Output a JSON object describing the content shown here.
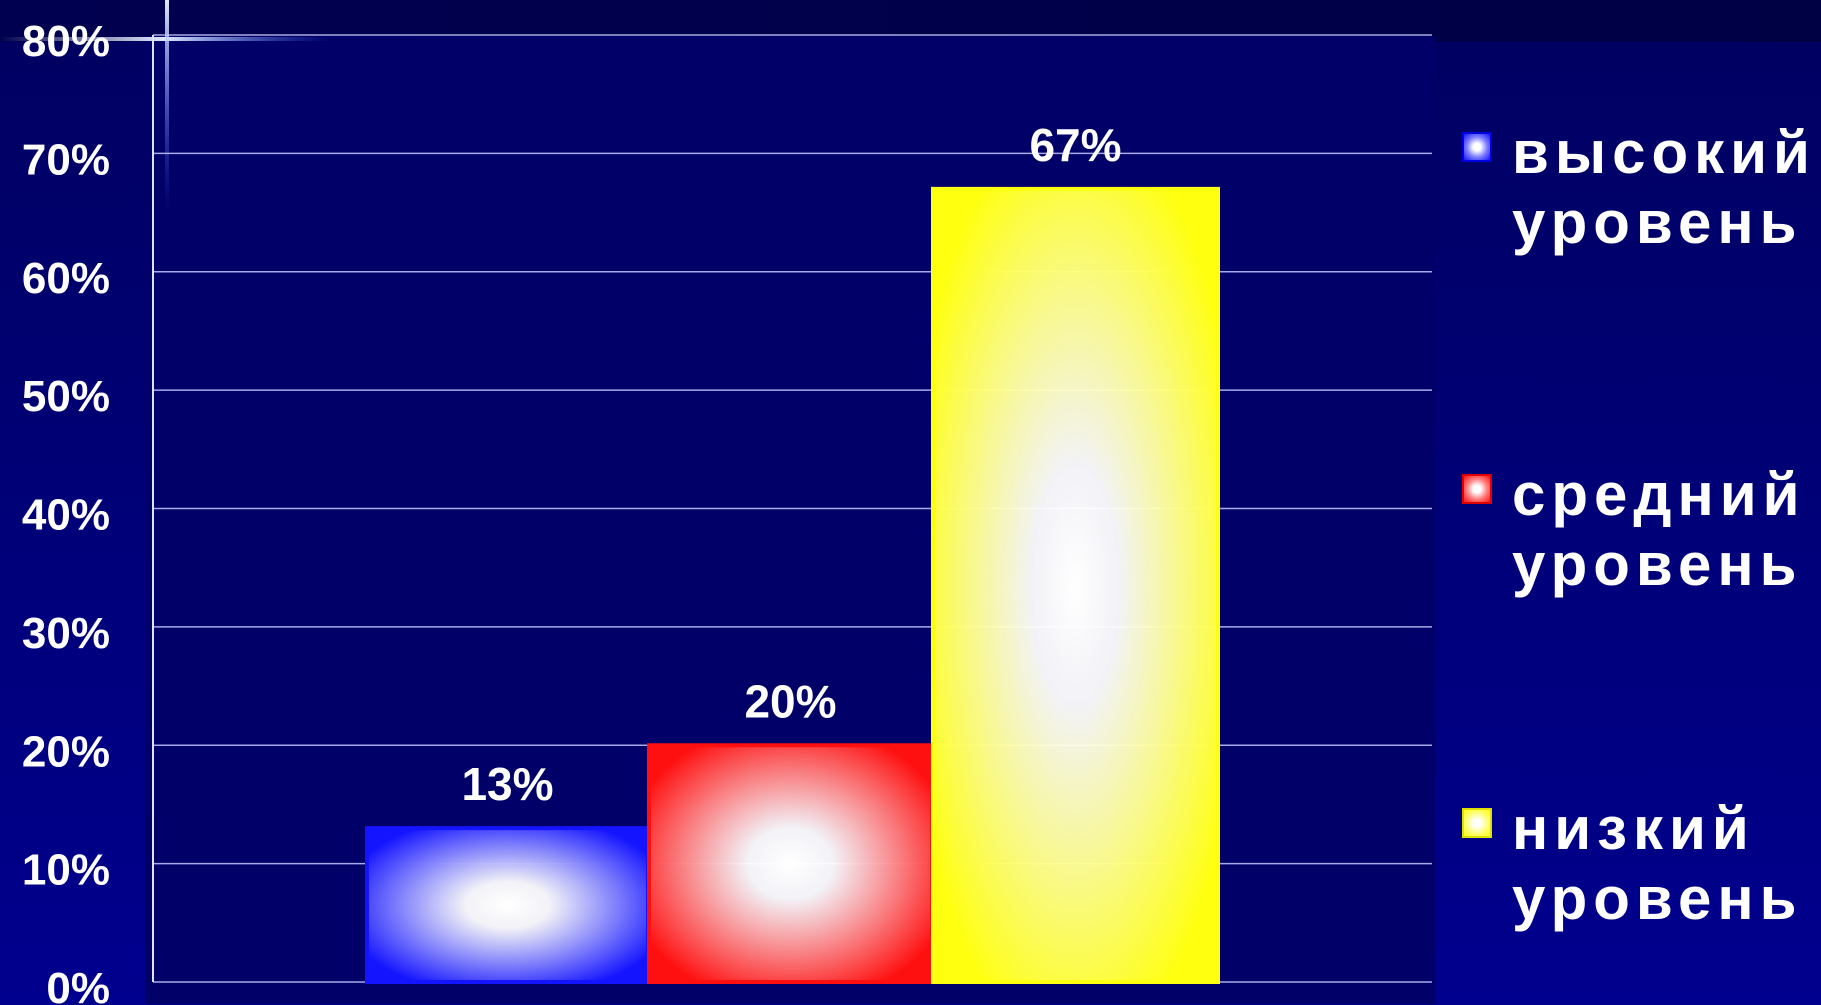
{
  "chart_data": {
    "type": "bar",
    "categories": [
      "высокий уровень",
      "средний уровень",
      "низкий уровень"
    ],
    "values": [
      13,
      20,
      67
    ],
    "data_labels": [
      "13%",
      "20%",
      "67%"
    ],
    "ylim": [
      0,
      80
    ],
    "yticks": [
      0,
      10,
      20,
      30,
      40,
      50,
      60,
      70,
      80
    ],
    "ytick_labels": [
      "0%",
      "10%",
      "20%",
      "30%",
      "40%",
      "50%",
      "60%",
      "70%",
      "80%"
    ],
    "grid": true,
    "legend_position": "right",
    "colors": [
      "#1414ff",
      "#ff1010",
      "#ffff10"
    ],
    "legend": [
      {
        "line1": "высокий",
        "line2": "уровень"
      },
      {
        "line1": "средний",
        "line2": "уровень"
      },
      {
        "line1": "низкий",
        "line2": "уровень"
      }
    ]
  }
}
